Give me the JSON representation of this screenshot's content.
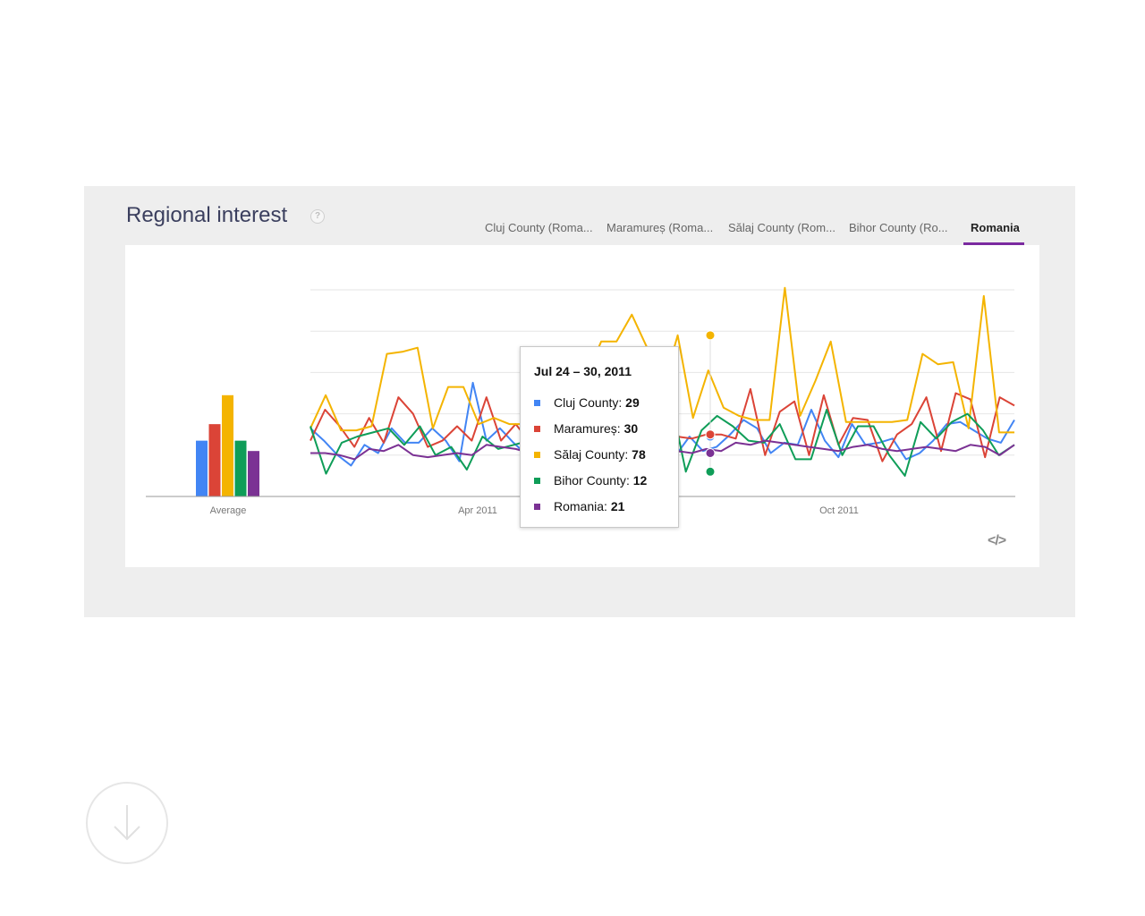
{
  "header": {
    "title": "Regional interest",
    "help_symbol": "?"
  },
  "tabs": [
    {
      "label": "Cluj County (Roma...",
      "active": false
    },
    {
      "label": "Maramureș (Roma...",
      "active": false
    },
    {
      "label": "Sălaj County (Rom...",
      "active": false
    },
    {
      "label": "Bihor County (Ro...",
      "active": false
    },
    {
      "label": "Romania",
      "active": true
    }
  ],
  "colors": {
    "cluj": "#4285f4",
    "maramures": "#db4437",
    "salaj": "#f4b400",
    "bihor": "#0f9d58",
    "romania": "#7b3294"
  },
  "chart_data": {
    "type": "line",
    "xlabel": "",
    "ylabel": "",
    "ylim": [
      0,
      100
    ],
    "grid": true,
    "x_tick_labels": [
      "Apr 2011",
      "Oct 2011"
    ],
    "average": {
      "label": "Average",
      "values": [
        {
          "name": "Cluj County",
          "value": 27
        },
        {
          "name": "Maramureș",
          "value": 35
        },
        {
          "name": "Sălaj County",
          "value": 49
        },
        {
          "name": "Bihor County",
          "value": 27
        },
        {
          "name": "Romania",
          "value": 22
        }
      ]
    },
    "series": [
      {
        "name": "Cluj County",
        "color": "#4285f4",
        "values": [
          33,
          27,
          20,
          15,
          25,
          21,
          33,
          26,
          26,
          33,
          27,
          17,
          55,
          27,
          33,
          26,
          20,
          27,
          25,
          28,
          23,
          20,
          27,
          27,
          28,
          20,
          18,
          20,
          29,
          22,
          24,
          30,
          37,
          33,
          21,
          26,
          25,
          42,
          27,
          19,
          35,
          25,
          26,
          28,
          18,
          21,
          27,
          35,
          36,
          32,
          28,
          26,
          37
        ]
      },
      {
        "name": "Maramureș",
        "color": "#db4437",
        "values": [
          27,
          42,
          34,
          24,
          38,
          26,
          48,
          40,
          24,
          27,
          34,
          27,
          48,
          27,
          35,
          26,
          29,
          30,
          31,
          28,
          28,
          35,
          29,
          31,
          30,
          29,
          28,
          30,
          30,
          28,
          52,
          20,
          41,
          46,
          20,
          49,
          25,
          38,
          37,
          17,
          30,
          35,
          48,
          22,
          50,
          47,
          19,
          48,
          44
        ]
      },
      {
        "name": "Sălaj County",
        "color": "#f4b400",
        "values": [
          33,
          49,
          32,
          32,
          34,
          69,
          70,
          72,
          33,
          53,
          53,
          35,
          38,
          35,
          35,
          36,
          33,
          38,
          58,
          75,
          75,
          88,
          72,
          52,
          78,
          38,
          61,
          43,
          39,
          37,
          37,
          101,
          39,
          56,
          75,
          36,
          36,
          36,
          36,
          37,
          69,
          64,
          65,
          33,
          97,
          31,
          31
        ]
      },
      {
        "name": "Bihor County",
        "color": "#0f9d58",
        "values": [
          34,
          11,
          26,
          29,
          31,
          33,
          25,
          34,
          20,
          24,
          13,
          29,
          23,
          25,
          27,
          24,
          26,
          38,
          24,
          23,
          46,
          23,
          42,
          48,
          12,
          32,
          39,
          34,
          27,
          26,
          35,
          18,
          18,
          42,
          20,
          34,
          34,
          20,
          10,
          36,
          28,
          36,
          40,
          32,
          20,
          25
        ]
      },
      {
        "name": "Romania",
        "color": "#7b3294",
        "values": [
          21,
          21,
          20,
          18,
          23,
          22,
          25,
          20,
          19,
          20,
          21,
          20,
          25,
          24,
          23,
          21,
          20,
          18,
          21,
          21,
          21,
          20,
          21,
          21,
          21,
          22,
          21,
          23,
          22,
          26,
          25,
          27,
          26,
          25,
          24,
          23,
          22,
          24,
          25,
          23,
          22,
          23,
          24,
          23,
          22,
          25,
          24,
          20,
          25
        ]
      }
    ],
    "tooltip": {
      "date": "Jul 24 – 30, 2011",
      "rows": [
        {
          "name": "Cluj County",
          "value": "29"
        },
        {
          "name": "Maramureș",
          "value": "30"
        },
        {
          "name": "Sălaj County",
          "value": "78"
        },
        {
          "name": "Bihor County",
          "value": "12"
        },
        {
          "name": "Romania",
          "value": "21"
        }
      ]
    }
  },
  "actions": {
    "embed_symbol": "</>",
    "download_icon": "download-icon"
  }
}
